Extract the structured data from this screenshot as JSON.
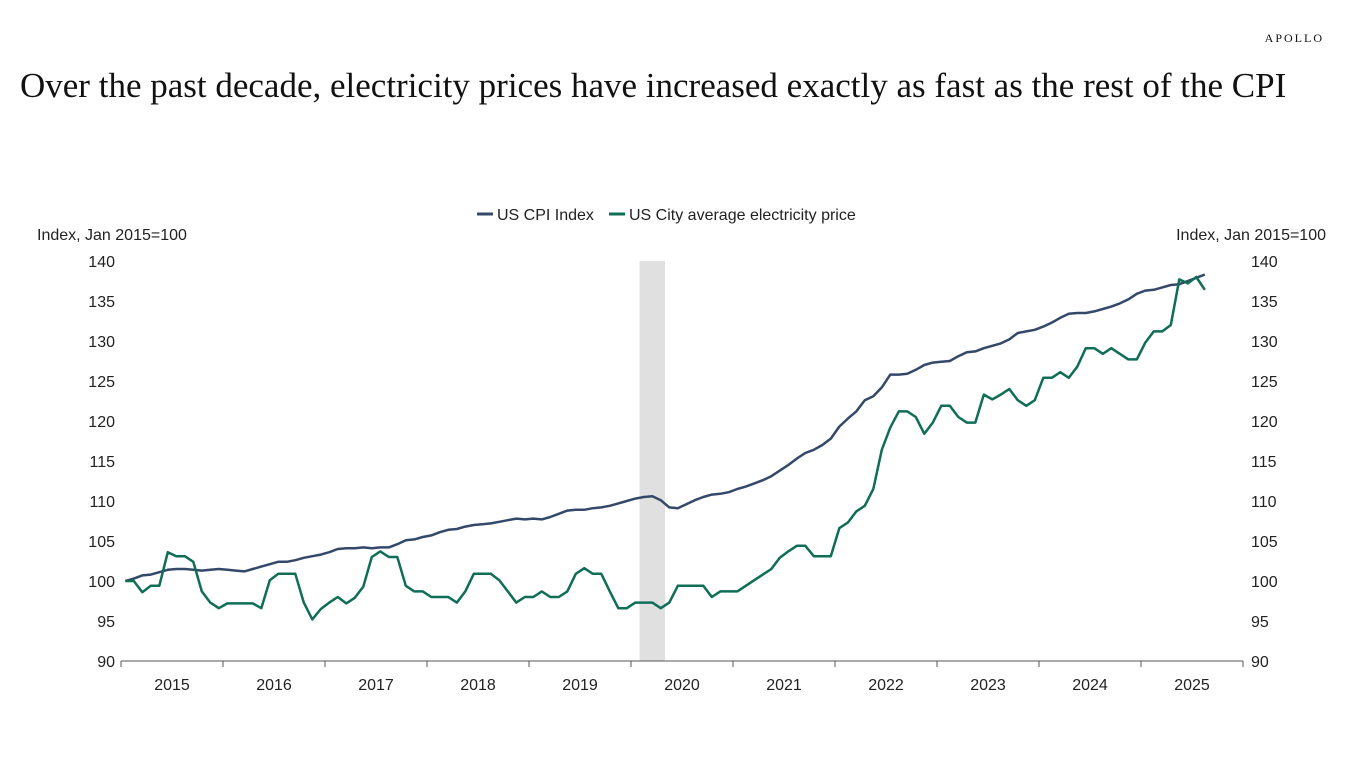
{
  "brand": "APOLLO",
  "title": "Over the past decade, electricity prices have increased exactly as fast as the rest of the CPI",
  "chart_data": {
    "type": "line",
    "title": "",
    "ylabel_left": "Index, Jan 2015=100",
    "ylabel_right": "Index, Jan 2015=100",
    "ylim": [
      90,
      140
    ],
    "yticks": [
      90,
      95,
      100,
      105,
      110,
      115,
      120,
      125,
      130,
      135,
      140
    ],
    "xticklabels": [
      "2015",
      "2016",
      "2017",
      "2018",
      "2019",
      "2020",
      "2021",
      "2022",
      "2023",
      "2024",
      "2025"
    ],
    "xlim": [
      "2015-01",
      "2025-12"
    ],
    "legend_position": "top-center",
    "grid": false,
    "shaded_period": {
      "start": "2020-02",
      "end": "2020-04",
      "color": "#e0e0e0"
    },
    "x": [
      "2015-01",
      "2015-02",
      "2015-03",
      "2015-04",
      "2015-05",
      "2015-06",
      "2015-07",
      "2015-08",
      "2015-09",
      "2015-10",
      "2015-11",
      "2015-12",
      "2016-01",
      "2016-02",
      "2016-03",
      "2016-04",
      "2016-05",
      "2016-06",
      "2016-07",
      "2016-08",
      "2016-09",
      "2016-10",
      "2016-11",
      "2016-12",
      "2017-01",
      "2017-02",
      "2017-03",
      "2017-04",
      "2017-05",
      "2017-06",
      "2017-07",
      "2017-08",
      "2017-09",
      "2017-10",
      "2017-11",
      "2017-12",
      "2018-01",
      "2018-02",
      "2018-03",
      "2018-04",
      "2018-05",
      "2018-06",
      "2018-07",
      "2018-08",
      "2018-09",
      "2018-10",
      "2018-11",
      "2018-12",
      "2019-01",
      "2019-02",
      "2019-03",
      "2019-04",
      "2019-05",
      "2019-06",
      "2019-07",
      "2019-08",
      "2019-09",
      "2019-10",
      "2019-11",
      "2019-12",
      "2020-01",
      "2020-02",
      "2020-03",
      "2020-04",
      "2020-05",
      "2020-06",
      "2020-07",
      "2020-08",
      "2020-09",
      "2020-10",
      "2020-11",
      "2020-12",
      "2021-01",
      "2021-02",
      "2021-03",
      "2021-04",
      "2021-05",
      "2021-06",
      "2021-07",
      "2021-08",
      "2021-09",
      "2021-10",
      "2021-11",
      "2021-12",
      "2022-01",
      "2022-02",
      "2022-03",
      "2022-04",
      "2022-05",
      "2022-06",
      "2022-07",
      "2022-08",
      "2022-09",
      "2022-10",
      "2022-11",
      "2022-12",
      "2023-01",
      "2023-02",
      "2023-03",
      "2023-04",
      "2023-05",
      "2023-06",
      "2023-07",
      "2023-08",
      "2023-09",
      "2023-10",
      "2023-11",
      "2023-12",
      "2024-01",
      "2024-02",
      "2024-03",
      "2024-04",
      "2024-05",
      "2024-06",
      "2024-07",
      "2024-08",
      "2024-09",
      "2024-10",
      "2024-11",
      "2024-12",
      "2025-01",
      "2025-02",
      "2025-03",
      "2025-04",
      "2025-05",
      "2025-06",
      "2025-07",
      "2025-08"
    ],
    "series": [
      {
        "name": "US CPI Index",
        "color": "#34486a",
        "values": [
          100,
          100.3,
          100.7,
          100.8,
          101.1,
          101.4,
          101.5,
          101.5,
          101.4,
          101.3,
          101.4,
          101.5,
          101.4,
          101.3,
          101.2,
          101.5,
          101.8,
          102.1,
          102.4,
          102.4,
          102.6,
          102.9,
          103.1,
          103.3,
          103.6,
          104,
          104.1,
          104.1,
          104.2,
          104.1,
          104.2,
          104.2,
          104.6,
          105.1,
          105.2,
          105.5,
          105.7,
          106.1,
          106.4,
          106.5,
          106.8,
          107,
          107.1,
          107.2,
          107.4,
          107.6,
          107.8,
          107.7,
          107.8,
          107.7,
          108,
          108.4,
          108.8,
          108.9,
          108.9,
          109.1,
          109.2,
          109.4,
          109.7,
          110.0,
          110.3,
          110.5,
          110.6,
          110.1,
          109.2,
          109.1,
          109.6,
          110.1,
          110.5,
          110.8,
          110.9,
          111.1,
          111.5,
          111.8,
          112.2,
          112.6,
          113.1,
          113.8,
          114.5,
          115.3,
          116.0,
          116.4,
          117.0,
          117.8,
          119.3,
          120.3,
          121.2,
          122.6,
          123.1,
          124.2,
          125.8,
          125.8,
          125.9,
          126.4,
          127.0,
          127.3,
          127.4,
          127.5,
          128.1,
          128.6,
          128.7,
          129.1,
          129.4,
          129.7,
          130.2,
          131.0,
          131.2,
          131.4,
          131.8,
          132.3,
          132.9,
          133.4,
          133.5,
          133.5,
          133.7,
          134.0,
          134.3,
          134.7,
          135.2,
          135.9,
          136.3,
          136.4,
          136.7,
          137.0,
          137.1,
          137.5,
          137.9,
          138.3
        ]
      },
      {
        "name": "US City average electricity price",
        "color": "#0f6e55",
        "values": [
          100,
          100,
          98.6,
          99.4,
          99.4,
          103.6,
          103.1,
          103.1,
          102.4,
          98.7,
          97.3,
          96.6,
          97.2,
          97.2,
          97.2,
          97.2,
          96.6,
          100.1,
          100.9,
          100.9,
          100.9,
          97.3,
          95.2,
          96.5,
          97.3,
          98,
          97.2,
          97.9,
          99.3,
          103,
          103.7,
          103,
          103,
          99.4,
          98.7,
          98.7,
          98,
          98,
          98,
          97.3,
          98.7,
          100.9,
          100.9,
          100.9,
          100.1,
          98.7,
          97.3,
          98,
          98,
          98.7,
          98,
          98,
          98.7,
          100.9,
          101.6,
          100.9,
          100.9,
          98.7,
          96.6,
          96.6,
          97.3,
          97.3,
          97.3,
          96.6,
          97.3,
          99.4,
          99.4,
          99.4,
          99.4,
          98,
          98.7,
          98.7,
          98.7,
          99.4,
          100.1,
          100.8,
          101.5,
          102.9,
          103.7,
          104.4,
          104.4,
          103.1,
          103.1,
          103.1,
          106.6,
          107.3,
          108.7,
          109.4,
          111.5,
          116.4,
          119.2,
          121.2,
          121.2,
          120.5,
          118.4,
          119.8,
          121.9,
          121.9,
          120.5,
          119.8,
          119.8,
          123.3,
          122.7,
          123.3,
          124,
          122.6,
          121.9,
          122.6,
          125.4,
          125.4,
          126.1,
          125.4,
          126.8,
          129.1,
          129.1,
          128.4,
          129.1,
          128.4,
          127.7,
          127.7,
          129.8,
          131.2,
          131.2,
          132,
          137.7,
          137.2,
          138,
          136.4
        ]
      }
    ]
  }
}
